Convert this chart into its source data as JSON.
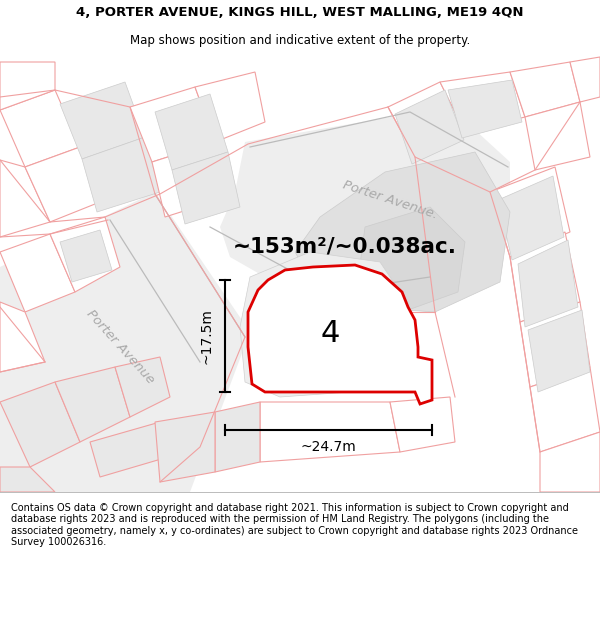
{
  "title": "4, PORTER AVENUE, KINGS HILL, WEST MALLING, ME19 4QN",
  "subtitle": "Map shows position and indicative extent of the property.",
  "area_text": "~153m²/~0.038ac.",
  "label_4": "4",
  "dim_height": "~17.5m",
  "dim_width": "~24.7m",
  "street_label_top": "Porter Avenue.",
  "street_label_left": "Porter Avenue",
  "footer": "Contains OS data © Crown copyright and database right 2021. This information is subject to Crown copyright and database rights 2023 and is reproduced with the permission of HM Land Registry. The polygons (including the associated geometry, namely x, y co-ordinates) are subject to Crown copyright and database rights 2023 Ordnance Survey 100026316.",
  "highlight_color": "#dd0000",
  "building_fill": "#e8e8e8",
  "outline_color": "#f0a0a0",
  "title_fontsize": 9.5,
  "subtitle_fontsize": 8.5,
  "footer_fontsize": 7.0,
  "map_bg": "#ffffff"
}
